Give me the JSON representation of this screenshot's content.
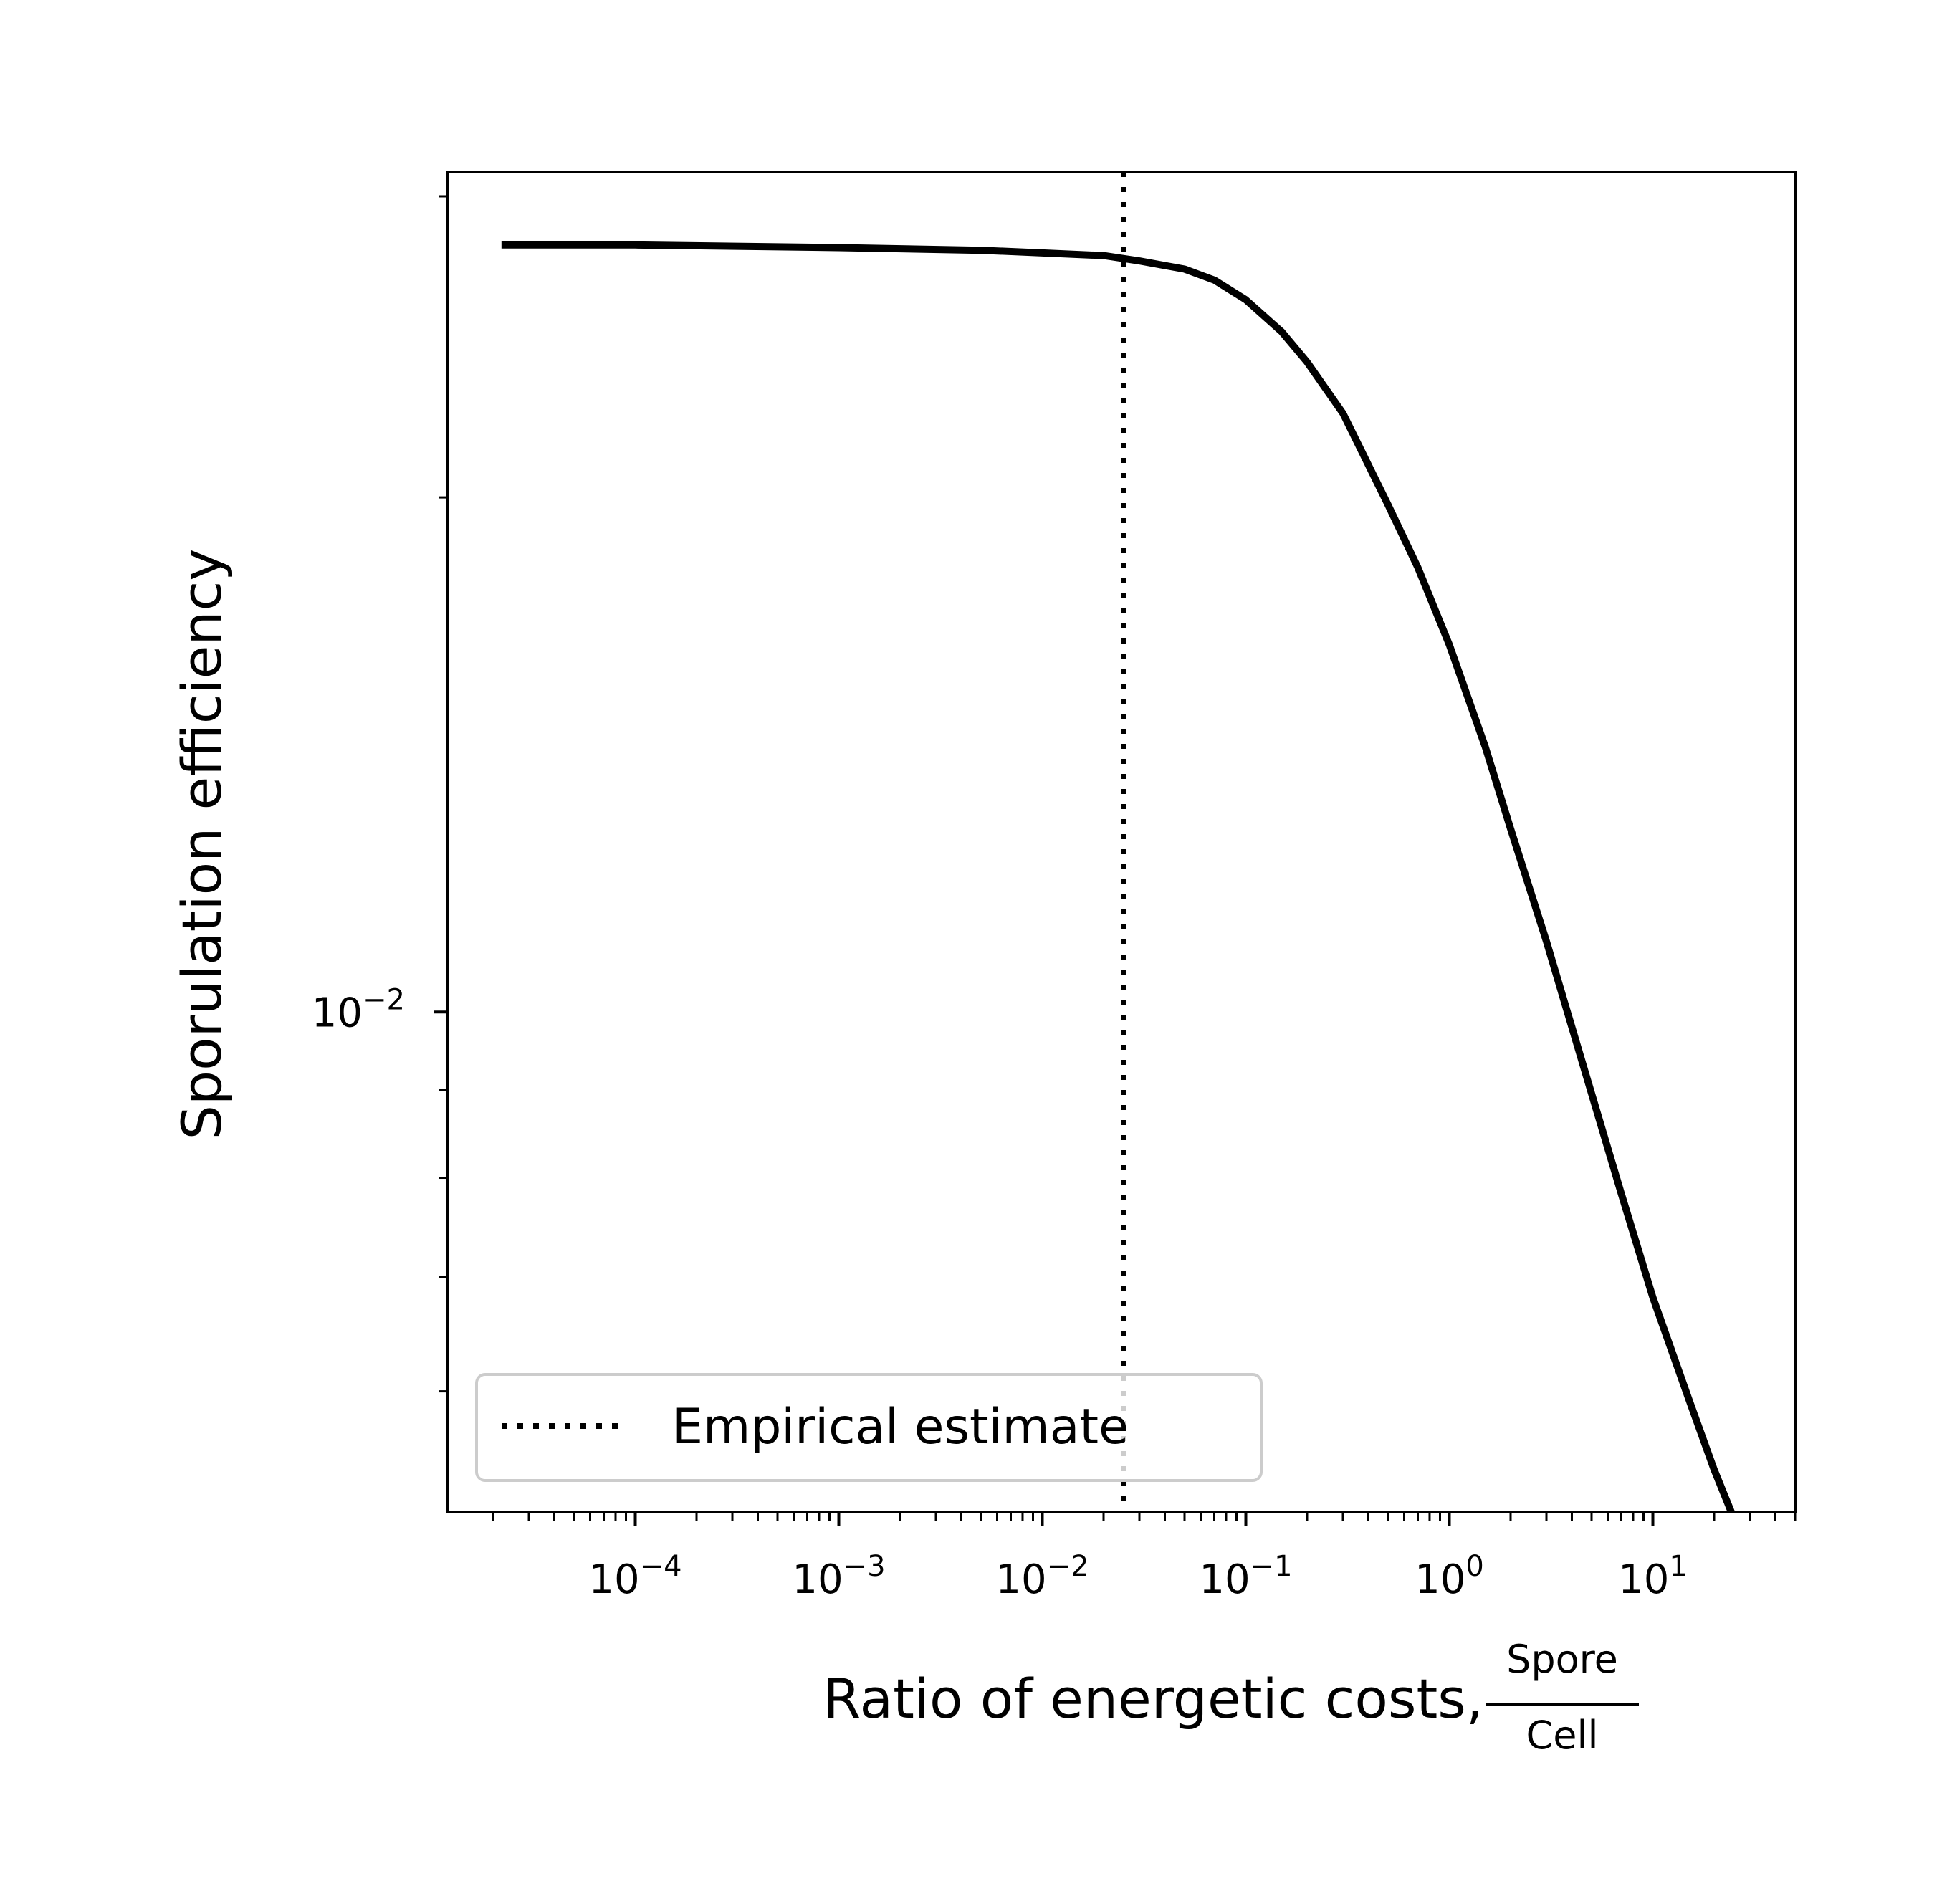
{
  "chart_data": {
    "type": "line",
    "xscale": "log",
    "yscale": "log",
    "xlabel": "Ratio of energetic costs,",
    "xlabel_fraction": {
      "numerator": "Spore",
      "denominator": "Cell"
    },
    "ylabel": "Sporulation efficiency",
    "xlim": [
      1.2e-05,
      50
    ],
    "ylim": [
      0.0051,
      0.031
    ],
    "x_ticks": [
      {
        "value": 0.0001,
        "base": "10",
        "exp": "−4"
      },
      {
        "value": 0.001,
        "base": "10",
        "exp": "−3"
      },
      {
        "value": 0.01,
        "base": "10",
        "exp": "−2"
      },
      {
        "value": 0.1,
        "base": "10",
        "exp": "−1"
      },
      {
        "value": 1,
        "base": "10",
        "exp": "0"
      },
      {
        "value": 10,
        "base": "10",
        "exp": "1"
      }
    ],
    "y_ticks": [
      {
        "value": 0.01,
        "base": "10",
        "exp": "−2"
      }
    ],
    "y_minor_ticks": [
      0.006,
      0.007,
      0.008,
      0.009,
      0.02,
      0.03
    ],
    "series": [
      {
        "name": "",
        "color": "#000000",
        "style": "solid",
        "x": [
          2.2e-05,
          0.0001,
          0.001,
          0.005,
          0.01,
          0.02,
          0.03,
          0.05,
          0.07,
          0.1,
          0.15,
          0.2,
          0.3,
          0.5,
          0.7,
          1,
          1.5,
          2,
          3,
          5,
          7,
          10,
          15,
          20,
          26
        ],
        "y": [
          0.0281,
          0.0281,
          0.028,
          0.0279,
          0.0278,
          0.0277,
          0.0275,
          0.0272,
          0.0268,
          0.0261,
          0.025,
          0.024,
          0.0224,
          0.0198,
          0.0182,
          0.0164,
          0.0143,
          0.0128,
          0.011,
          0.00896,
          0.00783,
          0.00681,
          0.00594,
          0.0054,
          0.005
        ]
      }
    ],
    "vlines": [
      {
        "x": 0.025,
        "style": "dotted",
        "color": "#000000",
        "label": "Empirical estimate"
      }
    ],
    "legend": {
      "position": "lower-left",
      "entries": [
        "Empirical estimate"
      ]
    },
    "grid": false
  }
}
